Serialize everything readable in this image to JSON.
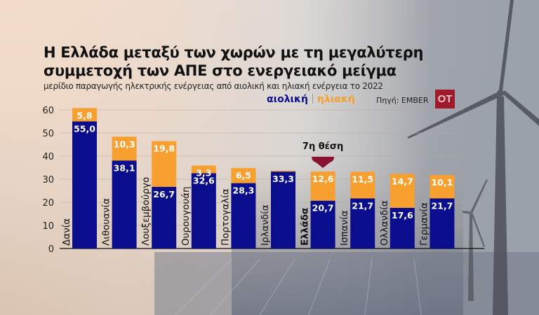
{
  "header": {
    "title_line1": "Η Ελλάδα μεταξύ των χωρών με τη μεγαλύτερη",
    "title_line2": "συμμετοχή των ΑΠΕ στο ενεργειακό μείγμα",
    "subtitle": "μερίδιο παραγωγής ηλεκτρικής ενέργειας από αιολική και ηλιακή ενέργεια το 2022",
    "source": "Πηγή: EMBER",
    "logo": "OT"
  },
  "chart_data": {
    "type": "bar",
    "stacked": true,
    "categories": [
      "Δανία",
      "Λιθουανία",
      "Λουξεμβούργο",
      "Ουρουγουάη",
      "Πορτογαλία",
      "Ιρλανδία",
      "Ελλάδα",
      "Ισπανία",
      "Ολλανδία",
      "Γερμανία"
    ],
    "highlight_category": "Ελλάδα",
    "series": [
      {
        "name": "αιολική",
        "color": "#0a0d8c",
        "values": [
          55.0,
          38.1,
          26.7,
          32.6,
          28.3,
          33.3,
          20.7,
          21.7,
          17.6,
          21.7
        ],
        "labels": [
          "55,0",
          "38,1",
          "26,7",
          "32,6",
          "28,3",
          "33,3",
          "20,7",
          "21,7",
          "17,6",
          "21,7"
        ]
      },
      {
        "name": "ηλιακή",
        "color": "#f7a030",
        "values": [
          5.8,
          10.3,
          19.8,
          3.3,
          6.5,
          0.4,
          12.6,
          11.5,
          14.7,
          10.1
        ],
        "labels": [
          "5,8",
          "10,3",
          "19,8",
          "3,3",
          "6,5",
          "",
          "12,6",
          "11,5",
          "14,7",
          "10,1"
        ]
      }
    ],
    "yticks": [
      "0",
      "10",
      "20",
      "30",
      "40",
      "50",
      "60"
    ],
    "ylim": [
      0,
      60
    ],
    "grid": true,
    "legend": "top-right",
    "annotation": {
      "text": "7η θέση",
      "category": "Ελλάδα",
      "color": "#8a1230"
    }
  }
}
